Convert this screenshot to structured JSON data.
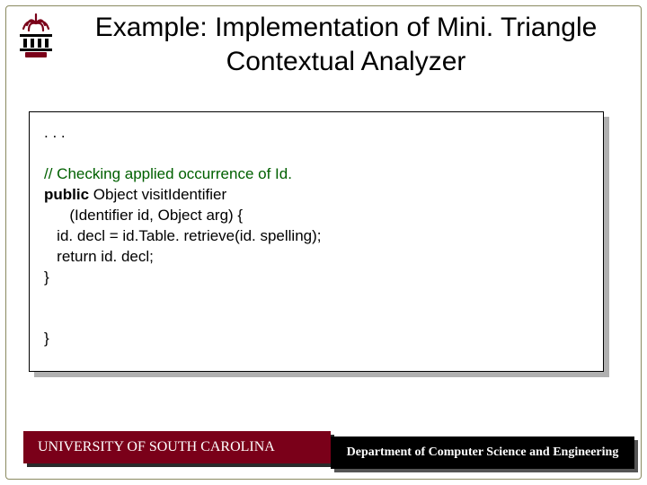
{
  "title": "Example: Implementation of Mini. Triangle Contextual Analyzer",
  "logo": {
    "top_color": "#7a0019",
    "mid_color": "#000000",
    "border_color": "#7a0019"
  },
  "code": {
    "background": "#ffffff",
    "shadow": "#b0b0b0",
    "font_size": 17,
    "lines": [
      {
        "indent": 0,
        "type": "plain",
        "text": ". . ."
      },
      {
        "indent": 0,
        "type": "blank",
        "text": ""
      },
      {
        "indent": 0,
        "type": "comment",
        "text": "// Checking applied occurrence of Id."
      },
      {
        "indent": 0,
        "type": "kw-lead",
        "kw": "public",
        "rest": " Object visitIdentifier"
      },
      {
        "indent": 2,
        "type": "plain",
        "text": "(Identifier id, Object arg) {"
      },
      {
        "indent": 1,
        "type": "plain",
        "text": "id. decl = id.Table. retrieve(id. spelling);"
      },
      {
        "indent": 1,
        "type": "plain",
        "text": "return id. decl;"
      },
      {
        "indent": 0,
        "type": "plain",
        "text": "}"
      },
      {
        "indent": 0,
        "type": "blank",
        "text": ""
      },
      {
        "indent": 0,
        "type": "blank",
        "text": ""
      },
      {
        "indent": 0,
        "type": "plain",
        "text": "}"
      }
    ]
  },
  "footer": {
    "left": {
      "text": "UNIVERSITY OF SOUTH CAROLINA",
      "bg": "#7a0019",
      "fg": "#ffffff"
    },
    "right": {
      "text": "Department of Computer Science and Engineering",
      "bg": "#000000",
      "fg": "#ffffff"
    }
  }
}
